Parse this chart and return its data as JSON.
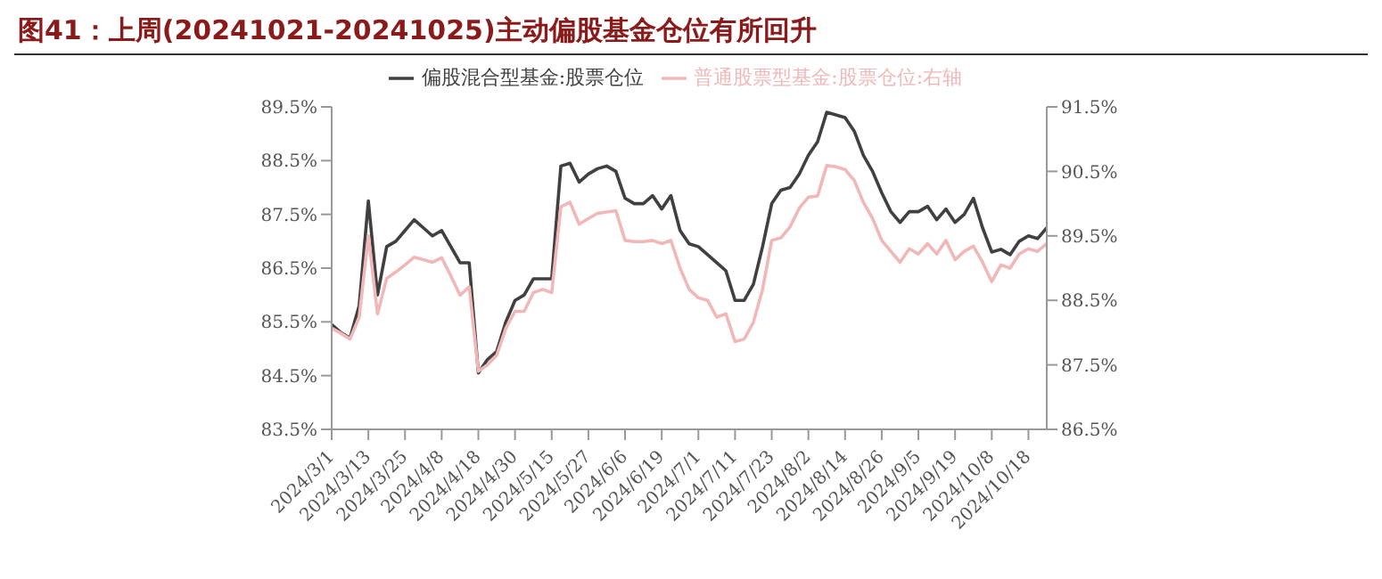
{
  "chart_data": {
    "type": "line",
    "title": "图41：上周(20241021-20241025)主动偏股基金仓位有所回升",
    "categories": [
      "2024/3/1",
      null,
      null,
      null,
      "2024/3/13",
      null,
      null,
      null,
      "2024/3/25",
      null,
      null,
      null,
      "2024/4/8",
      null,
      null,
      null,
      "2024/4/18",
      null,
      null,
      null,
      "2024/4/30",
      null,
      null,
      null,
      "2024/5/15",
      null,
      null,
      null,
      "2024/5/27",
      null,
      null,
      null,
      "2024/6/6",
      null,
      null,
      null,
      "2024/6/19",
      null,
      null,
      null,
      "2024/7/1",
      null,
      null,
      null,
      "2024/7/11",
      null,
      null,
      null,
      "2024/7/23",
      null,
      null,
      null,
      "2024/8/2",
      null,
      null,
      null,
      "2024/8/14",
      null,
      null,
      null,
      "2024/8/26",
      null,
      null,
      null,
      "2024/9/5",
      null,
      null,
      null,
      "2024/9/19",
      null,
      null,
      null,
      "2024/10/8",
      null,
      null,
      null,
      "2024/10/18",
      null,
      null
    ],
    "series": [
      {
        "name": "偏股混合型基金:股票仓位",
        "color": "#404040",
        "values": [
          85.45,
          85.3,
          85.2,
          85.8,
          87.75,
          86.0,
          86.9,
          87.0,
          87.2,
          87.4,
          87.25,
          87.1,
          87.2,
          86.9,
          86.6,
          86.6,
          84.55,
          84.8,
          84.95,
          85.5,
          85.9,
          86.0,
          86.3,
          86.3,
          86.3,
          88.4,
          88.45,
          88.1,
          88.25,
          88.35,
          88.4,
          88.3,
          87.8,
          87.7,
          87.7,
          87.85,
          87.6,
          87.85,
          87.2,
          86.95,
          86.9,
          86.75,
          86.6,
          86.45,
          85.9,
          85.9,
          86.2,
          86.9,
          87.7,
          87.95,
          88.0,
          88.25,
          88.6,
          88.85,
          89.4,
          89.35,
          89.3,
          89.05,
          88.6,
          88.3,
          87.9,
          87.55,
          87.35,
          87.55,
          87.55,
          87.65,
          87.4,
          87.6,
          87.35,
          87.5,
          87.8,
          87.25,
          86.8,
          86.85,
          86.75,
          87.0,
          87.1,
          87.05,
          87.25
        ]
      },
      {
        "name": "普通股票型基金:股票仓位:右轴",
        "color": "#f0b8b8",
        "axis": "y2",
        "values": [
          88.07,
          87.99,
          87.9,
          88.24,
          89.5,
          88.29,
          88.84,
          88.94,
          89.05,
          89.17,
          89.13,
          89.09,
          89.16,
          88.88,
          88.58,
          88.71,
          87.4,
          87.5,
          87.65,
          88.07,
          88.33,
          88.33,
          88.62,
          88.67,
          88.62,
          89.95,
          90.02,
          89.68,
          89.77,
          89.85,
          89.87,
          89.89,
          89.43,
          89.41,
          89.41,
          89.43,
          89.38,
          89.43,
          89.0,
          88.67,
          88.54,
          88.5,
          88.24,
          88.29,
          87.86,
          87.9,
          88.16,
          88.67,
          89.43,
          89.47,
          89.64,
          89.93,
          90.1,
          90.12,
          90.59,
          90.57,
          90.53,
          90.36,
          90.02,
          89.77,
          89.43,
          89.26,
          89.09,
          89.3,
          89.22,
          89.38,
          89.22,
          89.43,
          89.13,
          89.26,
          89.34,
          89.09,
          88.79,
          89.05,
          89.0,
          89.22,
          89.3,
          89.26,
          89.38
        ]
      }
    ],
    "ylim": [
      83.5,
      89.5
    ],
    "yticks": [
      {
        "value": 83.5,
        "label": "83.5%"
      },
      {
        "value": 84.5,
        "label": "84.5%"
      },
      {
        "value": 85.5,
        "label": "85.5%"
      },
      {
        "value": 86.5,
        "label": "86.5%"
      },
      {
        "value": 87.5,
        "label": "87.5%"
      },
      {
        "value": 88.5,
        "label": "88.5%"
      },
      {
        "value": 89.5,
        "label": "89.5%"
      }
    ],
    "y2lim": [
      86.5,
      91.5
    ],
    "y2ticks": [
      {
        "value": 86.5,
        "label": "86.5%"
      },
      {
        "value": 87.5,
        "label": "87.5%"
      },
      {
        "value": 88.5,
        "label": "88.5%"
      },
      {
        "value": 89.5,
        "label": "89.5%"
      },
      {
        "value": 90.5,
        "label": "90.5%"
      },
      {
        "value": 91.5,
        "label": "91.5%"
      }
    ],
    "legend": "top",
    "grid": false,
    "line_style": "solid",
    "marker": "none"
  }
}
